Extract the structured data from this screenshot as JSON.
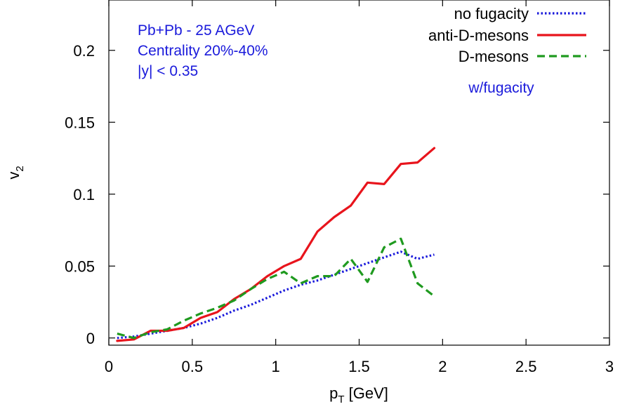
{
  "chart_data": {
    "type": "line",
    "xlabel": {
      "main": "p",
      "sub": "T",
      "unit": " [GeV]"
    },
    "ylabel": {
      "main": "v",
      "sub": "2"
    },
    "xlim": [
      0,
      3
    ],
    "ylim": [
      -0.005,
      0.235
    ],
    "xticks": [
      0,
      0.5,
      1,
      1.5,
      2,
      2.5,
      3
    ],
    "xtick_labels": [
      "0",
      "0.5",
      "1",
      "1.5",
      "2",
      "2.5",
      "3"
    ],
    "yticks": [
      0,
      0.05,
      0.1,
      0.15,
      0.2
    ],
    "ytick_labels": [
      "0",
      "0.05",
      "0.1",
      "0.15",
      "0.2"
    ],
    "grid": false,
    "legend_position": "top-right",
    "annotations": [
      {
        "text": "Pb+Pb - 25 AGeV",
        "color": "#1a1adb"
      },
      {
        "text": "Centrality 20%-40%",
        "color": "#1a1adb"
      },
      {
        "text": "|y| < 0.35",
        "color": "#1a1adb"
      },
      {
        "text": "w/fugacity",
        "color": "#1a1adb"
      }
    ],
    "series": [
      {
        "name": "no fugacity",
        "color": "#1a1adb",
        "style": "dotted",
        "x": [
          0.05,
          0.15,
          0.25,
          0.35,
          0.45,
          0.55,
          0.65,
          0.75,
          0.85,
          0.95,
          1.05,
          1.15,
          1.25,
          1.35,
          1.45,
          1.55,
          1.65,
          1.75,
          1.85,
          1.95
        ],
        "y": [
          0.0,
          0.001,
          0.003,
          0.005,
          0.007,
          0.01,
          0.014,
          0.019,
          0.023,
          0.028,
          0.033,
          0.037,
          0.04,
          0.044,
          0.048,
          0.052,
          0.056,
          0.06,
          0.055,
          0.058
        ]
      },
      {
        "name": "anti-D-mesons",
        "color": "#e8141c",
        "style": "solid",
        "x": [
          0.05,
          0.15,
          0.25,
          0.35,
          0.45,
          0.55,
          0.65,
          0.75,
          0.85,
          0.95,
          1.05,
          1.15,
          1.25,
          1.35,
          1.45,
          1.55,
          1.65,
          1.75,
          1.85,
          1.95
        ],
        "y": [
          -0.002,
          -0.001,
          0.005,
          0.005,
          0.007,
          0.014,
          0.018,
          0.027,
          0.034,
          0.043,
          0.05,
          0.055,
          0.074,
          0.084,
          0.092,
          0.108,
          0.107,
          0.121,
          0.122,
          0.132
        ]
      },
      {
        "name": "D-mesons",
        "color": "#1f9a1f",
        "style": "dashed",
        "x": [
          0.05,
          0.15,
          0.25,
          0.35,
          0.45,
          0.55,
          0.65,
          0.75,
          0.85,
          0.95,
          1.05,
          1.15,
          1.25,
          1.35,
          1.45,
          1.55,
          1.65,
          1.75,
          1.85,
          1.95
        ],
        "y": [
          0.003,
          0.0,
          0.004,
          0.006,
          0.012,
          0.017,
          0.021,
          0.026,
          0.034,
          0.041,
          0.046,
          0.038,
          0.043,
          0.043,
          0.055,
          0.039,
          0.063,
          0.069,
          0.038,
          0.029
        ]
      }
    ]
  }
}
